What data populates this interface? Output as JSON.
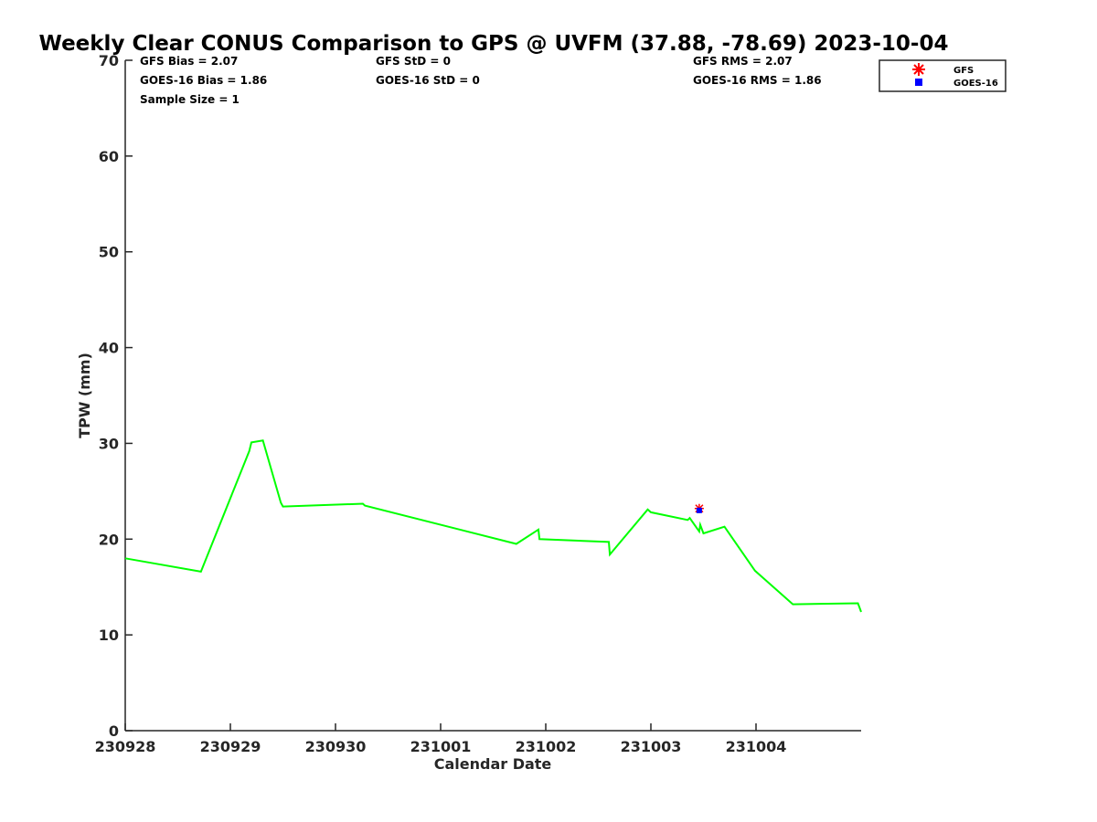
{
  "chart_data": {
    "type": "line",
    "title": "Weekly Clear CONUS Comparison to GPS @ UVFM (37.88, -78.69) 2023-10-04",
    "xlabel": "Calendar Date",
    "ylabel": "TPW (mm)",
    "xlim_days": [
      0,
      7
    ],
    "ylim": [
      0,
      70
    ],
    "grid": false,
    "x_tick_labels": [
      "230928",
      "230929",
      "230930",
      "231001",
      "231002",
      "231003",
      "231004"
    ],
    "y_ticks": [
      0,
      10,
      20,
      30,
      40,
      50,
      60,
      70
    ],
    "x_units": "days since 230928 00:00",
    "series": [
      {
        "name": "GPS",
        "type": "line",
        "color": "#00ff00",
        "x": [
          0,
          0.72,
          1.18,
          1.2,
          1.31,
          1.48,
          1.5,
          2.26,
          2.28,
          3.72,
          3.93,
          3.94,
          4.6,
          4.61,
          4.97,
          5.0,
          5.35,
          5.37,
          5.46,
          5.47,
          5.5,
          5.7,
          5.99,
          6.35,
          6.97,
          7.0
        ],
        "y": [
          18.0,
          16.6,
          29.2,
          30.1,
          30.3,
          23.8,
          23.4,
          23.7,
          23.5,
          19.5,
          21.0,
          20.0,
          19.7,
          18.4,
          23.1,
          22.8,
          22.0,
          22.2,
          20.8,
          21.5,
          20.6,
          21.3,
          16.7,
          13.2,
          13.3,
          12.4
        ]
      },
      {
        "name": "GFS",
        "type": "scatter",
        "marker": "asterisk",
        "color": "#ff0000",
        "x": [
          5.46
        ],
        "y": [
          23.2
        ]
      },
      {
        "name": "GOES-16",
        "type": "scatter",
        "marker": "square",
        "color": "#0000ff",
        "x": [
          5.46
        ],
        "y": [
          23.0
        ]
      }
    ],
    "legend": {
      "placement": "top-right",
      "entries": [
        "GFS",
        "GOES-16"
      ]
    },
    "annotations": {
      "gfs_bias": "GFS Bias = 2.07",
      "goes_bias": "GOES-16 Bias = 1.86",
      "sample_size": "Sample Size = 1",
      "gfs_std": "GFS StD = 0",
      "goes_std": "GOES-16 StD = 0",
      "gfs_rms": "GFS RMS = 2.07",
      "goes_rms": "GOES-16 RMS = 1.86"
    }
  }
}
